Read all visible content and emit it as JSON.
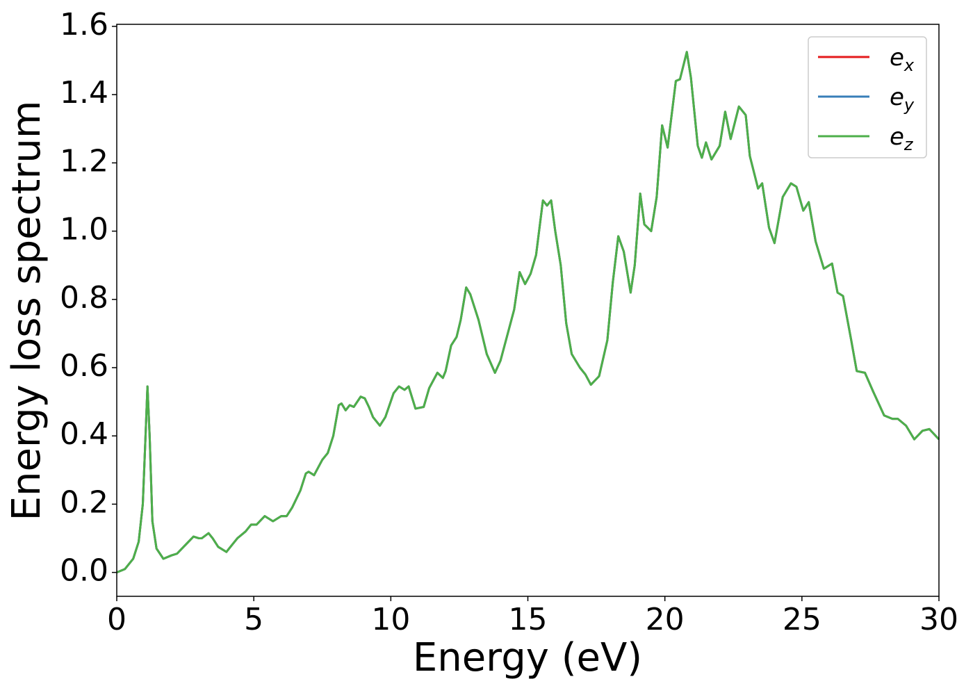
{
  "chart_data": {
    "type": "line",
    "xlabel": "Energy (eV)",
    "ylabel": "Energy loss spectrum",
    "xlim": [
      0,
      30
    ],
    "ylim": [
      -0.07,
      1.606
    ],
    "xticks": [
      0,
      5,
      10,
      15,
      20,
      25,
      30
    ],
    "yticks": [
      {
        "value": 0,
        "label": "0.0"
      },
      {
        "value": 0.2,
        "label": "0.2"
      },
      {
        "value": 0.4,
        "label": "0.4"
      },
      {
        "value": 0.6,
        "label": "0.6"
      },
      {
        "value": 0.8,
        "label": "0.8"
      },
      {
        "value": 1,
        "label": "1.0"
      },
      {
        "value": 1.2,
        "label": "1.2"
      },
      {
        "value": 1.4,
        "label": "1.4"
      },
      {
        "value": 1.6,
        "label": "1.6"
      }
    ],
    "legend": "upper right",
    "x": [
      0,
      0.3,
      0.6,
      0.8,
      0.95,
      1.05,
      1.12,
      1.2,
      1.3,
      1.45,
      1.7,
      2.0,
      2.2,
      2.5,
      2.8,
      3.0,
      3.1,
      3.35,
      3.5,
      3.7,
      4.0,
      4.2,
      4.4,
      4.7,
      4.9,
      5.1,
      5.4,
      5.7,
      6.0,
      6.2,
      6.4,
      6.7,
      6.9,
      7.0,
      7.2,
      7.5,
      7.7,
      7.9,
      8.1,
      8.2,
      8.35,
      8.5,
      8.65,
      8.9,
      9.05,
      9.2,
      9.35,
      9.6,
      9.8,
      10.1,
      10.3,
      10.5,
      10.65,
      10.9,
      11.2,
      11.4,
      11.7,
      11.9,
      12.0,
      12.2,
      12.4,
      12.55,
      12.75,
      12.9,
      13.2,
      13.5,
      13.8,
      14.0,
      14.3,
      14.5,
      14.7,
      14.9,
      15.1,
      15.3,
      15.55,
      15.7,
      15.85,
      16.0,
      16.2,
      16.4,
      16.6,
      16.9,
      17.1,
      17.3,
      17.6,
      17.9,
      18.1,
      18.3,
      18.5,
      18.75,
      18.9,
      19.1,
      19.25,
      19.5,
      19.7,
      19.9,
      20.1,
      20.4,
      20.55,
      20.8,
      20.95,
      21.2,
      21.35,
      21.5,
      21.7,
      22.0,
      22.2,
      22.4,
      22.7,
      22.95,
      23.1,
      23.4,
      23.55,
      23.8,
      24.0,
      24.3,
      24.6,
      24.8,
      25.05,
      25.25,
      25.5,
      25.8,
      26.1,
      26.3,
      26.5,
      26.8,
      27.0,
      27.3,
      27.6,
      28.0,
      28.3,
      28.5,
      28.8,
      29.1,
      29.4,
      29.65,
      30.0
    ],
    "series": [
      {
        "name": "ex",
        "color": "#e41a1c",
        "values": [
          0,
          0.01,
          0.04,
          0.09,
          0.2,
          0.4,
          0.545,
          0.4,
          0.15,
          0.07,
          0.04,
          0.05,
          0.055,
          0.08,
          0.105,
          0.1,
          0.1,
          0.115,
          0.1,
          0.075,
          0.06,
          0.08,
          0.1,
          0.12,
          0.14,
          0.14,
          0.165,
          0.15,
          0.165,
          0.165,
          0.19,
          0.24,
          0.29,
          0.295,
          0.285,
          0.33,
          0.35,
          0.4,
          0.49,
          0.495,
          0.475,
          0.49,
          0.485,
          0.515,
          0.51,
          0.485,
          0.455,
          0.43,
          0.455,
          0.525,
          0.545,
          0.535,
          0.545,
          0.48,
          0.485,
          0.54,
          0.585,
          0.57,
          0.59,
          0.665,
          0.69,
          0.74,
          0.835,
          0.815,
          0.74,
          0.64,
          0.585,
          0.62,
          0.71,
          0.77,
          0.88,
          0.845,
          0.875,
          0.93,
          1.09,
          1.075,
          1.09,
          1.0,
          0.9,
          0.73,
          0.64,
          0.6,
          0.58,
          0.55,
          0.575,
          0.68,
          0.85,
          0.985,
          0.94,
          0.82,
          0.9,
          1.11,
          1.02,
          1.0,
          1.1,
          1.31,
          1.245,
          1.44,
          1.445,
          1.525,
          1.45,
          1.25,
          1.215,
          1.26,
          1.21,
          1.25,
          1.35,
          1.27,
          1.365,
          1.34,
          1.22,
          1.125,
          1.14,
          1.01,
          0.965,
          1.1,
          1.14,
          1.13,
          1.06,
          1.085,
          0.97,
          0.89,
          0.905,
          0.82,
          0.81,
          0.68,
          0.59,
          0.585,
          0.53,
          0.46,
          0.45,
          0.45,
          0.43,
          0.39,
          0.415,
          0.42,
          0.39
        ]
      },
      {
        "name": "ey",
        "color": "#377eb8",
        "values": [
          0,
          0.01,
          0.04,
          0.09,
          0.2,
          0.4,
          0.545,
          0.4,
          0.15,
          0.07,
          0.04,
          0.05,
          0.055,
          0.08,
          0.105,
          0.1,
          0.1,
          0.115,
          0.1,
          0.075,
          0.06,
          0.08,
          0.1,
          0.12,
          0.14,
          0.14,
          0.165,
          0.15,
          0.165,
          0.165,
          0.19,
          0.24,
          0.29,
          0.295,
          0.285,
          0.33,
          0.35,
          0.4,
          0.49,
          0.495,
          0.475,
          0.49,
          0.485,
          0.515,
          0.51,
          0.485,
          0.455,
          0.43,
          0.455,
          0.525,
          0.545,
          0.535,
          0.545,
          0.48,
          0.485,
          0.54,
          0.585,
          0.57,
          0.59,
          0.665,
          0.69,
          0.74,
          0.835,
          0.815,
          0.74,
          0.64,
          0.585,
          0.62,
          0.71,
          0.77,
          0.88,
          0.845,
          0.875,
          0.93,
          1.09,
          1.075,
          1.09,
          1.0,
          0.9,
          0.73,
          0.64,
          0.6,
          0.58,
          0.55,
          0.575,
          0.68,
          0.85,
          0.985,
          0.94,
          0.82,
          0.9,
          1.11,
          1.02,
          1.0,
          1.1,
          1.31,
          1.245,
          1.44,
          1.445,
          1.525,
          1.45,
          1.25,
          1.215,
          1.26,
          1.21,
          1.25,
          1.35,
          1.27,
          1.365,
          1.34,
          1.22,
          1.125,
          1.14,
          1.01,
          0.965,
          1.1,
          1.14,
          1.13,
          1.06,
          1.085,
          0.97,
          0.89,
          0.905,
          0.82,
          0.81,
          0.68,
          0.59,
          0.585,
          0.53,
          0.46,
          0.45,
          0.45,
          0.43,
          0.39,
          0.415,
          0.42,
          0.39
        ]
      },
      {
        "name": "ez",
        "color": "#4daf4a",
        "values": [
          0,
          0.01,
          0.04,
          0.09,
          0.2,
          0.4,
          0.545,
          0.4,
          0.15,
          0.07,
          0.04,
          0.05,
          0.055,
          0.08,
          0.105,
          0.1,
          0.1,
          0.115,
          0.1,
          0.075,
          0.06,
          0.08,
          0.1,
          0.12,
          0.14,
          0.14,
          0.165,
          0.15,
          0.165,
          0.165,
          0.19,
          0.24,
          0.29,
          0.295,
          0.285,
          0.33,
          0.35,
          0.4,
          0.49,
          0.495,
          0.475,
          0.49,
          0.485,
          0.515,
          0.51,
          0.485,
          0.455,
          0.43,
          0.455,
          0.525,
          0.545,
          0.535,
          0.545,
          0.48,
          0.485,
          0.54,
          0.585,
          0.57,
          0.59,
          0.665,
          0.69,
          0.74,
          0.835,
          0.815,
          0.74,
          0.64,
          0.585,
          0.62,
          0.71,
          0.77,
          0.88,
          0.845,
          0.875,
          0.93,
          1.09,
          1.075,
          1.09,
          1.0,
          0.9,
          0.73,
          0.64,
          0.6,
          0.58,
          0.55,
          0.575,
          0.68,
          0.85,
          0.985,
          0.94,
          0.82,
          0.9,
          1.11,
          1.02,
          1.0,
          1.1,
          1.31,
          1.245,
          1.44,
          1.445,
          1.525,
          1.45,
          1.25,
          1.215,
          1.26,
          1.21,
          1.25,
          1.35,
          1.27,
          1.365,
          1.34,
          1.22,
          1.125,
          1.14,
          1.01,
          0.965,
          1.1,
          1.14,
          1.13,
          1.06,
          1.085,
          0.97,
          0.89,
          0.905,
          0.82,
          0.81,
          0.68,
          0.59,
          0.585,
          0.53,
          0.46,
          0.45,
          0.45,
          0.43,
          0.39,
          0.415,
          0.42,
          0.39
        ]
      }
    ]
  }
}
